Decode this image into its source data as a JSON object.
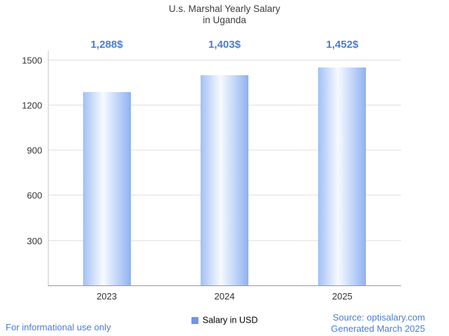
{
  "title": {
    "line1": "U.s. Marshal Yearly Salary",
    "line2": "in Uganda"
  },
  "chart_data": {
    "type": "bar",
    "title": "U.s. Marshal Yearly Salary in Uganda",
    "categories": [
      "2023",
      "2024",
      "2025"
    ],
    "series": [
      {
        "name": "Salary in USD",
        "values": [
          1288,
          1403,
          1452
        ]
      }
    ],
    "value_labels": [
      "1,288$",
      "1,403$",
      "1,452$"
    ],
    "xlabel": "",
    "ylabel": "",
    "ylim": [
      0,
      1550
    ],
    "yticks": [
      300,
      600,
      900,
      1200,
      1500
    ],
    "grid": true,
    "legend_position": "bottom"
  },
  "legend": {
    "label": "Salary in USD"
  },
  "footer": {
    "disclaimer": "For informational use only",
    "source": "Source: optisalary.com",
    "generated": "Generated March 2025"
  },
  "colors": {
    "accent_blue": "#4a7dd6",
    "footer_blue": "#4a7dd6",
    "title_text": "#3d3d3d",
    "axis_text": "#333333",
    "bar_gradient_left": "#a3c0f5",
    "bar_gradient_mid": "#f7faff",
    "bar_gradient_right": "#8fb2f2",
    "legend_swatch": "#6f96ea",
    "gridline": "#e0e0e0",
    "axis_line": "#9a9a9a"
  }
}
